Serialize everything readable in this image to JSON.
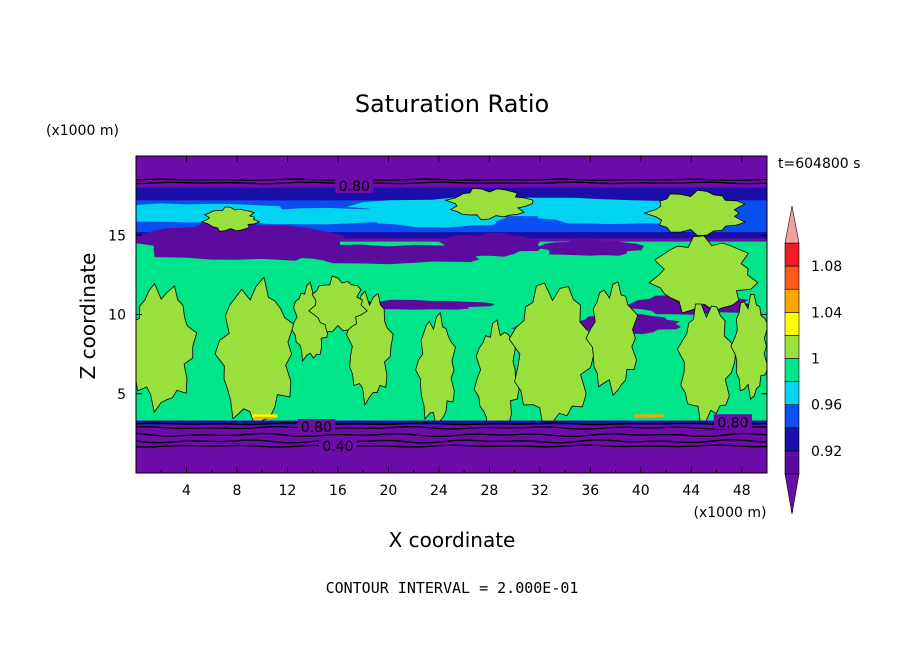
{
  "chart_data": {
    "type": "heatmap",
    "title": "Saturation Ratio",
    "xlabel": "X coordinate",
    "ylabel": "Z coordinate",
    "x_unit": "(x1000 m)",
    "y_unit": "(x1000 m)",
    "time_label": "t=604800 s",
    "footer": "CONTOUR INTERVAL = 2.000E-01",
    "xlim": [
      0,
      50
    ],
    "ylim": [
      0,
      20
    ],
    "x_ticks": [
      4,
      8,
      12,
      16,
      20,
      24,
      28,
      32,
      36,
      40,
      44,
      48
    ],
    "y_ticks": [
      5,
      10,
      15
    ],
    "contour_labels": [
      {
        "text": "0.80",
        "x": 17.3,
        "y": 18.1
      },
      {
        "text": "0.80",
        "x": 14.3,
        "y": 2.9
      },
      {
        "text": "0.40",
        "x": 16.0,
        "y": 1.7
      },
      {
        "text": "0.80",
        "x": 47.3,
        "y": 3.2
      }
    ],
    "colorbar": {
      "levels": [
        0.9,
        0.92,
        0.94,
        0.96,
        0.98,
        1.0,
        1.02,
        1.04,
        1.06,
        1.08,
        1.1
      ],
      "tick_labels": [
        "0.92",
        "0.96",
        "1",
        "1.04",
        "1.08"
      ],
      "colors": [
        "#5b0c9e",
        "#1a0fa8",
        "#0a50f0",
        "#00d4f0",
        "#00e58a",
        "#99e03c",
        "#ffff00",
        "#ffa500",
        "#ff5a1a",
        "#ee1c24"
      ],
      "under_color": "#6d0ca8",
      "over_color": "#f4a0a0"
    },
    "fields": {
      "upper_dry_band": {
        "z_range": [
          18.5,
          20
        ],
        "value": 0.8
      },
      "tropopause_moist_layer": {
        "z_range": [
          14.8,
          18.0
        ]
      },
      "cloud_layer": {
        "z_range": [
          3.3,
          14.8
        ],
        "values": [
          0.98,
          1.0
        ]
      },
      "boundary_layer": {
        "z_range": [
          0,
          3.3
        ],
        "values": [
          0.4,
          0.8
        ]
      }
    }
  }
}
